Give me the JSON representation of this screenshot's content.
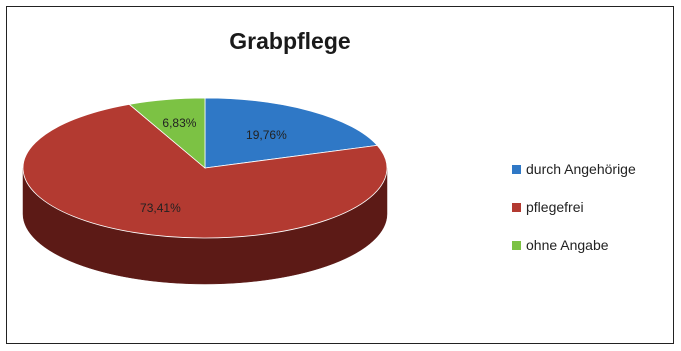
{
  "chart_data": {
    "type": "pie",
    "title": "Grabpflege",
    "categories": [
      "durch Angehörige",
      "pflegefrei",
      "ohne Angabe"
    ],
    "values": [
      19.76,
      73.41,
      6.83
    ],
    "labels": [
      "19,76%",
      "73,41%",
      "6,83%"
    ],
    "colors": [
      "#2f78c6",
      "#b33a31",
      "#7cc244"
    ],
    "side_colors": [
      "#1f5490",
      "#5c1a16",
      "#4f8a2a"
    ],
    "legend_position": "right",
    "three_d": true
  }
}
